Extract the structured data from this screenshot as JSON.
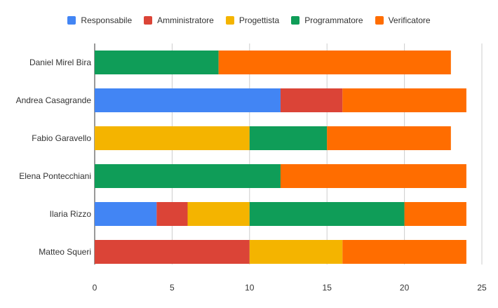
{
  "chart_data": {
    "type": "bar",
    "orientation": "horizontal",
    "stacked": true,
    "categories": [
      "Daniel Mirel Bira",
      "Andrea Casagrande",
      "Fabio Garavello",
      "Elena Pontecchiani",
      "Ilaria Rizzo",
      "Matteo Squeri"
    ],
    "series": [
      {
        "name": "Responsabile",
        "color": "#4285f4",
        "values": [
          0,
          12,
          0,
          0,
          4,
          0
        ]
      },
      {
        "name": "Amministratore",
        "color": "#db4437",
        "values": [
          0,
          4,
          0,
          0,
          2,
          10
        ]
      },
      {
        "name": "Progettista",
        "color": "#f4b400",
        "values": [
          0,
          0,
          10,
          0,
          4,
          6
        ]
      },
      {
        "name": "Programmatore",
        "color": "#0f9d58",
        "values": [
          8,
          0,
          5,
          12,
          10,
          0
        ]
      },
      {
        "name": "Verificatore",
        "color": "#ff6d00",
        "values": [
          15,
          8,
          8,
          12,
          4,
          8
        ]
      }
    ],
    "xlim": [
      0,
      25
    ],
    "xticks": [
      0,
      5,
      10,
      15,
      20,
      25
    ],
    "grid": "vertical",
    "legend_position": "top"
  }
}
